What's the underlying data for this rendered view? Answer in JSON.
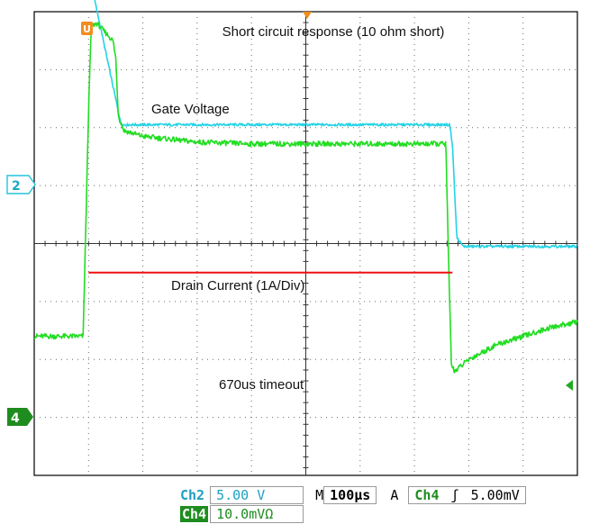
{
  "chart_data": {
    "type": "line",
    "title": "Short circuit response (10 ohm short)",
    "x_unit": "µs",
    "xlim": [
      -100,
      900
    ],
    "divisions": {
      "x": 10,
      "y": 8
    },
    "grid": true,
    "series": [
      {
        "name": "Gate Voltage",
        "channel": "2",
        "color": "#22d3e6",
        "volts_per_div": 5.0,
        "reference_div": 2.0,
        "points": [
          [
            -100,
            4.9
          ],
          [
            -5,
            4.9
          ],
          [
            0,
            4.7
          ],
          [
            60,
            2.05
          ],
          [
            120,
            2.05
          ],
          [
            200,
            2.05
          ],
          [
            300,
            2.05
          ],
          [
            400,
            2.05
          ],
          [
            500,
            2.05
          ],
          [
            650,
            2.05
          ],
          [
            665,
            2.05
          ],
          [
            670,
            1.7
          ],
          [
            678,
            0.1
          ],
          [
            690,
            -0.05
          ],
          [
            800,
            -0.05
          ],
          [
            900,
            -0.05
          ]
        ]
      },
      {
        "name": "Drain Current (1A/Div)",
        "channel": "4",
        "color": "#22dd22",
        "volts_per_div": 0.01,
        "reference_div": -1.5,
        "points": [
          [
            -100,
            -1.6
          ],
          [
            -10,
            -1.6
          ],
          [
            -5,
            0.3
          ],
          [
            0,
            2.3
          ],
          [
            5,
            3.75
          ],
          [
            15,
            3.8
          ],
          [
            30,
            3.65
          ],
          [
            45,
            3.5
          ],
          [
            50,
            3.2
          ],
          [
            55,
            2.2
          ],
          [
            65,
            1.95
          ],
          [
            100,
            1.85
          ],
          [
            200,
            1.75
          ],
          [
            300,
            1.72
          ],
          [
            400,
            1.72
          ],
          [
            500,
            1.72
          ],
          [
            600,
            1.72
          ],
          [
            658,
            1.72
          ],
          [
            662,
            0.0
          ],
          [
            668,
            -2.1
          ],
          [
            675,
            -2.2
          ],
          [
            700,
            -2.0
          ],
          [
            750,
            -1.75
          ],
          [
            800,
            -1.6
          ],
          [
            850,
            -1.45
          ],
          [
            900,
            -1.35
          ]
        ]
      }
    ],
    "marker": {
      "label": "670us timeout",
      "color": "#ee1111",
      "x_start": 0,
      "x_end": 670,
      "y_div": -0.5
    },
    "labels": {
      "gate": "Gate Voltage",
      "drain": "Drain Current (1A/Div)",
      "timeout": "670us timeout"
    },
    "readout": {
      "ch2_label": "Ch2",
      "ch2_scale": "5.00 V",
      "time_label": "M",
      "time_scale": "100µs",
      "trigger_label": "A",
      "trigger_channel": "Ch4",
      "trigger_slope": "ʃ",
      "trigger_level": "5.00mV",
      "ch4_label": "Ch4",
      "ch4_scale": "10.0mVΩ"
    },
    "channel_markers": {
      "ch2": "2",
      "ch4": "4",
      "trigger_cursor": "U"
    }
  }
}
